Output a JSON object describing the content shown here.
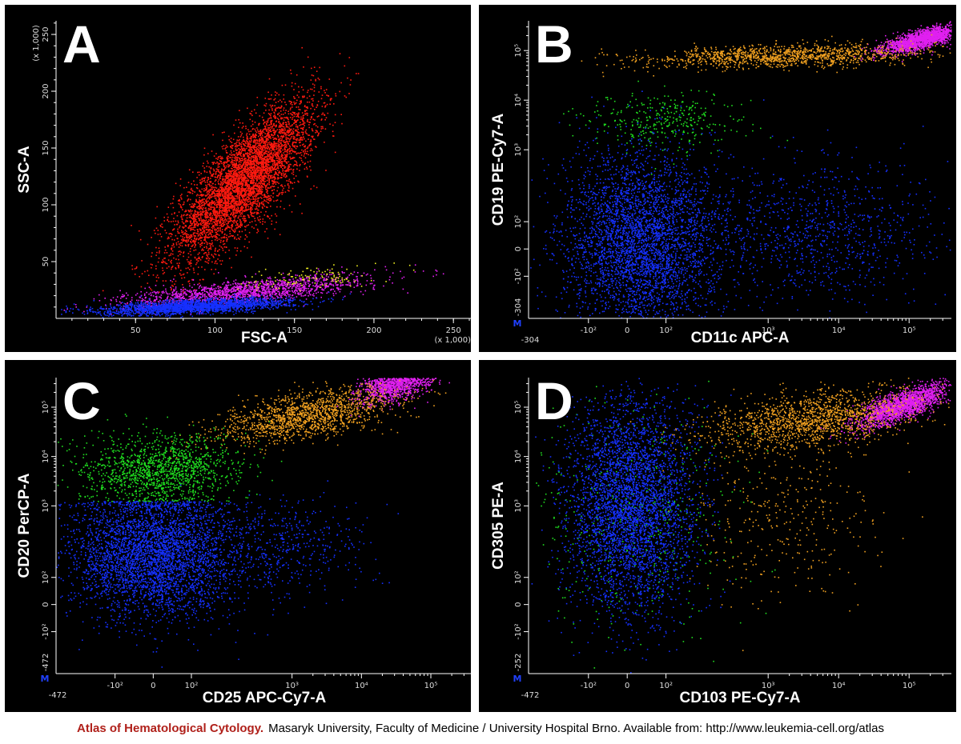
{
  "colors": {
    "background": "#000000",
    "frame": "#ffffff",
    "red": "#ff1a10",
    "blue": "#1530ff",
    "magenta": "#e020f0",
    "orange": "#f0a020",
    "green": "#20e020",
    "yellow": "#f0f020",
    "marker": "#2040ff",
    "footer_brand": "#b0201a"
  },
  "chart_data": [
    {
      "type": "scatter",
      "panel_label": "A",
      "xlabel": "FSC-A",
      "ylabel": "SSC-A",
      "x_scale": "linear",
      "y_scale": "linear",
      "x_multiplier_label": "(x 1,000)",
      "y_multiplier_label": "(x 1,000)",
      "xlim": [
        0,
        262
      ],
      "ylim": [
        0,
        262
      ],
      "x_ticks": [
        "50",
        "100",
        "150",
        "200",
        "250"
      ],
      "y_ticks": [
        "50",
        "100",
        "150",
        "200",
        "250"
      ],
      "series": [
        {
          "color": "red",
          "points": 5200,
          "cx": 118,
          "cy": 122,
          "sx": 22,
          "sy": 34,
          "rho": 0.78
        },
        {
          "color": "magenta",
          "points": 1600,
          "cx": 118,
          "cy": 24,
          "sx": 38,
          "sy": 7,
          "rho": 0.7
        },
        {
          "color": "yellow",
          "points": 120,
          "cx": 160,
          "cy": 36,
          "sx": 20,
          "sy": 5,
          "rho": 0.4
        },
        {
          "color": "blue",
          "points": 2200,
          "cx": 88,
          "cy": 11,
          "sx": 30,
          "sy": 3.5,
          "rho": 0.55
        }
      ]
    },
    {
      "type": "scatter",
      "panel_label": "B",
      "xlabel": "CD11c APC-A",
      "ylabel": "CD19 PE-Cy7-A",
      "x_scale": "biexponential",
      "y_scale": "biexponential",
      "axis_min_label": "-304",
      "x_ticks": [
        "-10²",
        "0",
        "10²",
        "10³",
        "10⁴",
        "10⁵"
      ],
      "y_ticks": [
        "-10²",
        "0",
        "10²",
        "10³",
        "10⁴",
        "10⁵"
      ],
      "gate_marker": "M",
      "series": [
        {
          "color": "magenta",
          "points": 1900,
          "cx": 4.2,
          "cy": 4.25,
          "sx": 0.28,
          "sy": 0.14,
          "rho": 0.75
        },
        {
          "color": "orange",
          "points": 1300,
          "cx": 2.2,
          "cy": 3.9,
          "sx": 1.0,
          "sy": 0.12,
          "rho": 0.3
        },
        {
          "color": "green",
          "points": 350,
          "cx": 0.55,
          "cy": 2.55,
          "sx": 0.55,
          "sy": 0.3,
          "rho": 0.1
        },
        {
          "color": "blue",
          "points": 3800,
          "cx": 0.2,
          "cy": 0.15,
          "sx": 0.55,
          "sy": 0.9,
          "rho": 0.0
        },
        {
          "color": "blue",
          "points": 1000,
          "cx": 2.6,
          "cy": 0.35,
          "sx": 0.9,
          "sy": 0.75,
          "rho": 0.0
        }
      ]
    },
    {
      "type": "scatter",
      "panel_label": "C",
      "xlabel": "CD25 APC-Cy7-A",
      "ylabel": "CD20 PerCP-A",
      "x_scale": "biexponential",
      "y_scale": "biexponential",
      "axis_min_label": "-472",
      "x_ticks": [
        "-10²",
        "0",
        "10²",
        "10³",
        "10⁴",
        "10⁵"
      ],
      "y_ticks": [
        "-10²",
        "0",
        "10²",
        "10³",
        "10⁴",
        "10⁵"
      ],
      "gate_marker": "M",
      "series": [
        {
          "color": "magenta",
          "points": 1700,
          "cx": 3.55,
          "cy": 4.55,
          "sx": 0.28,
          "sy": 0.22,
          "rho": 0.55
        },
        {
          "color": "orange",
          "points": 1500,
          "cx": 2.2,
          "cy": 3.85,
          "sx": 0.65,
          "sy": 0.28,
          "rho": 0.55
        },
        {
          "color": "green",
          "points": 1400,
          "cx": 0.1,
          "cy": 2.75,
          "sx": 0.55,
          "sy": 0.35,
          "rho": 0.1,
          "ymin": 2.1
        },
        {
          "color": "blue",
          "points": 3800,
          "cx": 0.0,
          "cy": 1.0,
          "sx": 0.6,
          "sy": 0.65,
          "rho": 0.0,
          "ymax": 2.1
        },
        {
          "color": "blue",
          "points": 500,
          "cx": 1.8,
          "cy": 1.2,
          "sx": 0.7,
          "sy": 0.5,
          "rho": 0.0
        }
      ]
    },
    {
      "type": "scatter",
      "panel_label": "D",
      "xlabel": "CD103 PE-Cy7-A",
      "ylabel": "CD305 PE-A",
      "x_scale": "biexponential",
      "y_scale": "biexponential",
      "axis_min_label": "-472",
      "y_axis_min_label": "-252",
      "x_ticks": [
        "-10²",
        "0",
        "10²",
        "10³",
        "10⁴",
        "10⁵"
      ],
      "y_ticks": [
        "-10²",
        "0",
        "10²",
        "10³",
        "10⁴",
        "10⁵"
      ],
      "gate_marker": "M",
      "series": [
        {
          "color": "magenta",
          "points": 1900,
          "cx": 3.9,
          "cy": 4.05,
          "sx": 0.32,
          "sy": 0.22,
          "rho": 0.75
        },
        {
          "color": "orange",
          "points": 1500,
          "cx": 2.6,
          "cy": 3.75,
          "sx": 0.75,
          "sy": 0.3,
          "rho": 0.4
        },
        {
          "color": "orange",
          "points": 350,
          "cx": 2.2,
          "cy": 1.8,
          "sx": 0.7,
          "sy": 0.8,
          "rho": 0.0
        },
        {
          "color": "green",
          "points": 450,
          "cx": 0.1,
          "cy": 1.9,
          "sx": 0.7,
          "sy": 1.1,
          "rho": 0.0
        },
        {
          "color": "blue",
          "points": 4200,
          "cx": 0.05,
          "cy": 2.0,
          "sx": 0.45,
          "sy": 1.05,
          "rho": 0.0
        }
      ]
    }
  ],
  "footer": {
    "atlas": "Atlas of Hematological Cytology.",
    "rest": "Masaryk University, Faculty of Medicine / University Hospital Brno. Available from: http://www.leukemia-cell.org/atlas"
  }
}
